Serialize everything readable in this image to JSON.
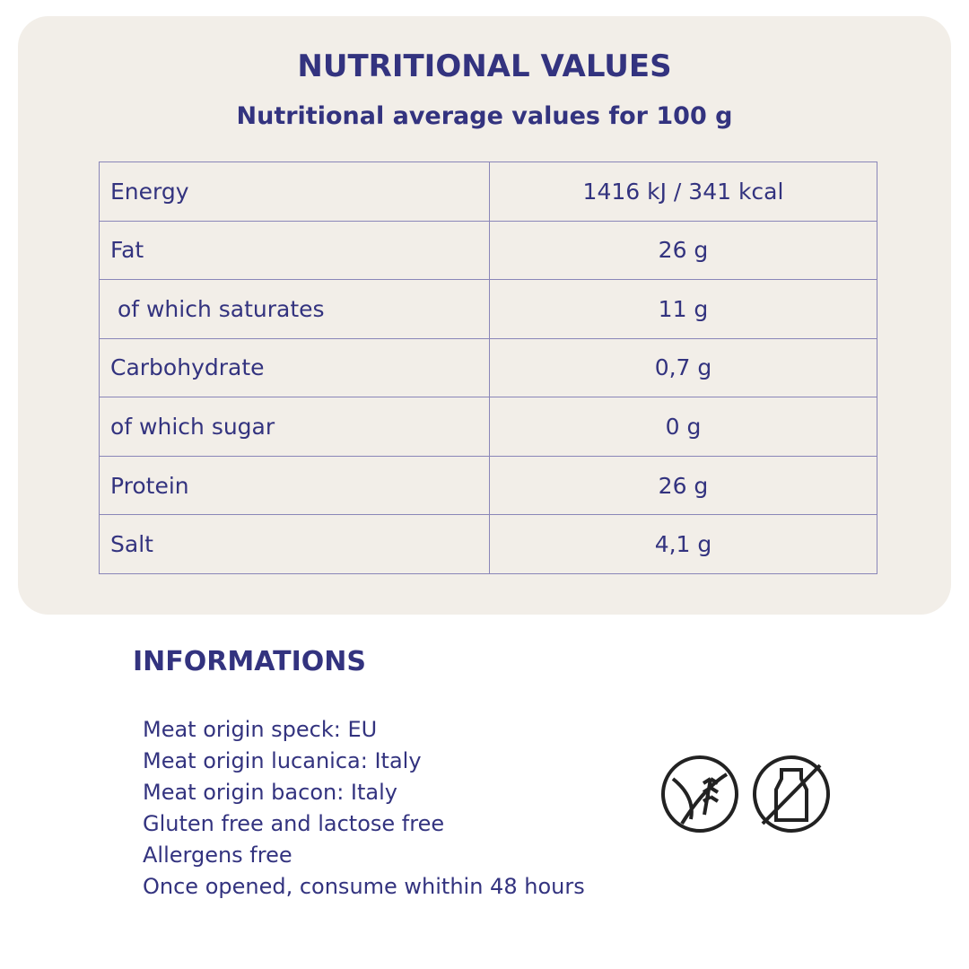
{
  "header": {
    "title": "NUTRITIONAL VALUES",
    "subtitle": "Nutritional average values for 100 g"
  },
  "table": {
    "rows": [
      [
        "Energy",
        "1416 kJ / 341 kcal"
      ],
      [
        "Fat",
        "26 g"
      ],
      [
        " of which saturates",
        "11 g"
      ],
      [
        "Carbohydrate",
        "0,7 g"
      ],
      [
        "of which sugar",
        "0 g"
      ],
      [
        "Protein",
        "26 g"
      ],
      [
        "Salt",
        "4,1 g"
      ]
    ]
  },
  "info": {
    "title": "INFORMATIONS",
    "lines": [
      "Meat origin speck: EU",
      "Meat origin lucanica: Italy",
      "Meat origin bacon: Italy",
      "Gluten free and lactose free",
      "Allergens free",
      "Once opened, consume whithin 48 hours"
    ]
  }
}
